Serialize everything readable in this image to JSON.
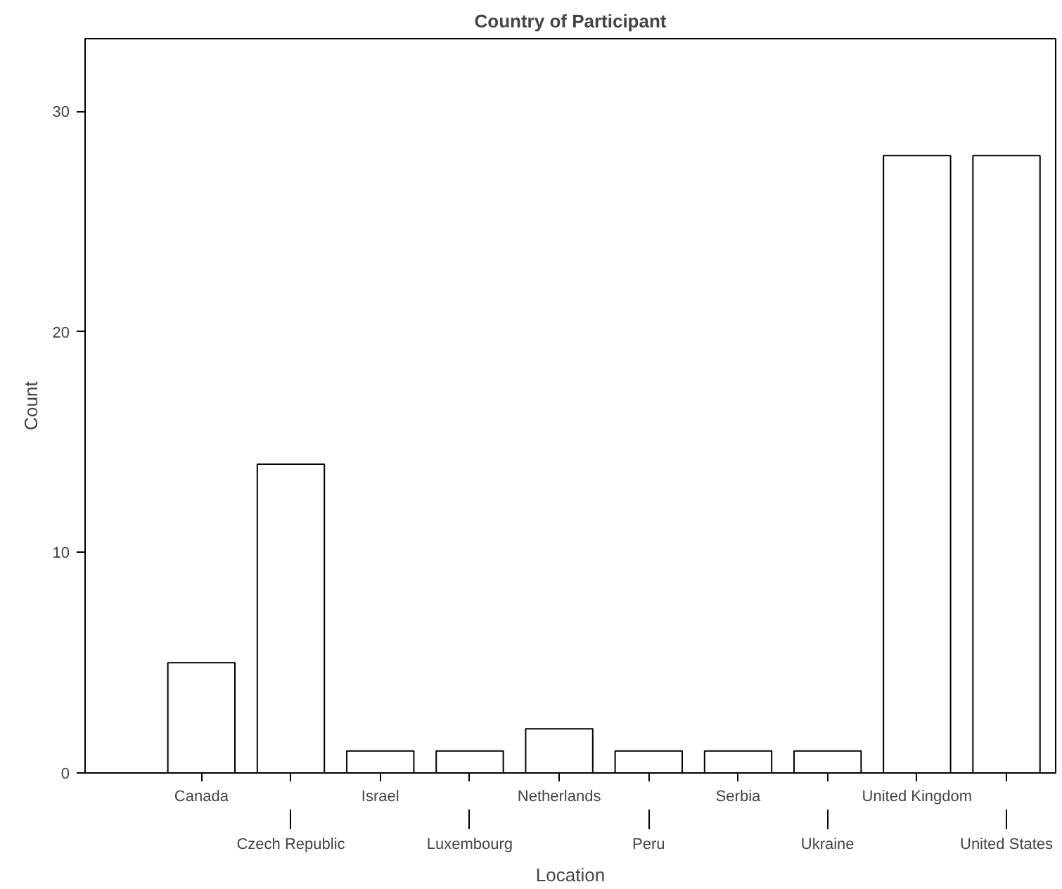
{
  "chart_data": {
    "type": "bar",
    "title": "Country of Participant",
    "xlabel": "Location",
    "ylabel": "Count",
    "categories": [
      "Canada",
      "Czech Republic",
      "Israel",
      "Luxembourg",
      "Netherlands",
      "Peru",
      "Serbia",
      "Ukraine",
      "United Kingdom",
      "United States"
    ],
    "values": [
      5,
      14,
      1,
      1,
      2,
      1,
      1,
      1,
      28,
      28
    ],
    "color": "#ffffff",
    "ylim": [
      0,
      33.3
    ],
    "yticks": [
      0,
      10,
      20,
      30
    ],
    "grid": false
  }
}
